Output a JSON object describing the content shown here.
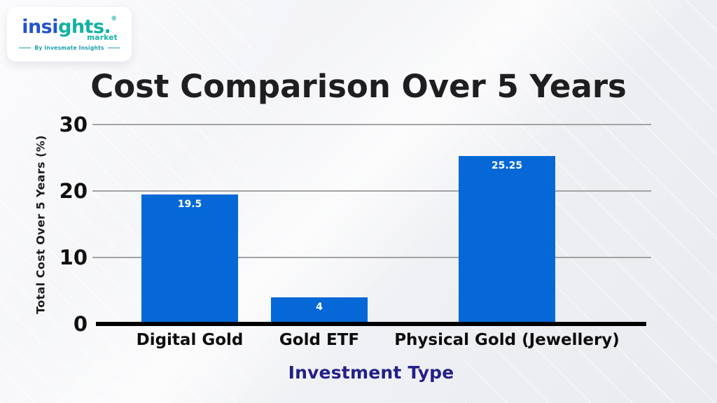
{
  "logo": {
    "brand_primary": "insi",
    "brand_secondary": "ghts.",
    "registered_mark": "®",
    "word_market": "market",
    "tagline": "By Invesmate Insights",
    "brand_blue": "#2353c9",
    "brand_teal": "#12b2a2",
    "tagline_color": "#1a9fae"
  },
  "chart_data": {
    "type": "bar",
    "title": "Cost Comparison Over 5 Years",
    "categories": [
      "Digital Gold",
      "Gold ETF",
      "Physical Gold (Jewellery)"
    ],
    "values": [
      19.5,
      4,
      25.25
    ],
    "value_labels": [
      "19.5",
      "4",
      "25.25"
    ],
    "xlabel": "Investment Type",
    "ylabel": "Total Cost Over 5 Years (%)",
    "yticks": [
      0,
      10,
      20,
      30
    ],
    "ylim": [
      0,
      30
    ],
    "grid": true,
    "legend": false,
    "bar_color": "#0568d6",
    "value_label_color": "#ffffff",
    "gridline_color": "#a3a3a3",
    "axis_color": "#000000",
    "title_color": "#1e1e20",
    "tick_color": "#101010",
    "category_color": "#0d0d0d",
    "ylabel_color": "#1c1c1c",
    "xlabel_color": "#241f87"
  }
}
